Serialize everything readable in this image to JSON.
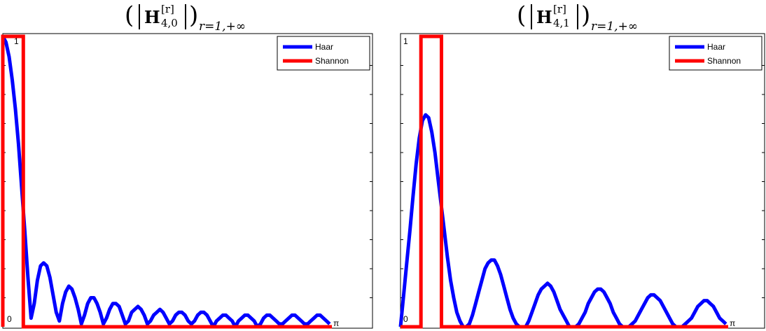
{
  "chart_data": [
    {
      "type": "line",
      "title": {
        "main": "H",
        "superscript": "[r]",
        "subscript": "4,0",
        "range": "r=1,+∞"
      },
      "y_tick_labels": {
        "top": "1",
        "bottom": "0"
      },
      "x_tick_labels": {
        "end": "π"
      },
      "xlim": [
        0,
        3.1416
      ],
      "ylim": [
        0,
        1
      ],
      "legend": {
        "placement": "top-right",
        "entries": [
          "Haar",
          "Shannon"
        ]
      },
      "series": [
        {
          "name": "Haar",
          "color": "#0000ff",
          "x": [
            0,
            0.03,
            0.06,
            0.09,
            0.12,
            0.15,
            0.18,
            0.21,
            0.24,
            0.27,
            0.3,
            0.33,
            0.36,
            0.39,
            0.42,
            0.45,
            0.48,
            0.51,
            0.54,
            0.57,
            0.6,
            0.63,
            0.66,
            0.69,
            0.72,
            0.75,
            0.78,
            0.81,
            0.84,
            0.87,
            0.9,
            0.93,
            0.96,
            0.99,
            1.02,
            1.05,
            1.08,
            1.11,
            1.14,
            1.17,
            1.2,
            1.23,
            1.26,
            1.29,
            1.32,
            1.35,
            1.38,
            1.41,
            1.44,
            1.47,
            1.5,
            1.53,
            1.56,
            1.59,
            1.62,
            1.65,
            1.68,
            1.71,
            1.74,
            1.77,
            1.8,
            1.83,
            1.86,
            1.89,
            1.92,
            1.95,
            1.98,
            2.01,
            2.04,
            2.07,
            2.1,
            2.13,
            2.16,
            2.19,
            2.22,
            2.25,
            2.28,
            2.31,
            2.34,
            2.37,
            2.4,
            2.43,
            2.46,
            2.49,
            2.52,
            2.55,
            2.58,
            2.61,
            2.64,
            2.67,
            2.7,
            2.73,
            2.76,
            2.79,
            2.82,
            2.85,
            2.88,
            2.91,
            2.94,
            2.97,
            3.0,
            3.03,
            3.06,
            3.09,
            3.12
          ],
          "y": [
            1.0,
            0.98,
            0.93,
            0.85,
            0.75,
            0.63,
            0.48,
            0.33,
            0.17,
            0.03,
            0.08,
            0.16,
            0.21,
            0.22,
            0.21,
            0.17,
            0.11,
            0.05,
            0.02,
            0.08,
            0.12,
            0.14,
            0.13,
            0.1,
            0.06,
            0.01,
            0.04,
            0.08,
            0.1,
            0.1,
            0.08,
            0.05,
            0.01,
            0.03,
            0.06,
            0.08,
            0.08,
            0.07,
            0.04,
            0.01,
            0.02,
            0.05,
            0.06,
            0.07,
            0.06,
            0.04,
            0.01,
            0.02,
            0.04,
            0.05,
            0.06,
            0.05,
            0.03,
            0.01,
            0.02,
            0.04,
            0.05,
            0.05,
            0.04,
            0.02,
            0.01,
            0.02,
            0.04,
            0.05,
            0.05,
            0.04,
            0.02,
            0.0,
            0.02,
            0.03,
            0.04,
            0.04,
            0.03,
            0.02,
            0.0,
            0.02,
            0.03,
            0.04,
            0.04,
            0.03,
            0.02,
            0.0,
            0.01,
            0.03,
            0.04,
            0.04,
            0.03,
            0.02,
            0.01,
            0.01,
            0.02,
            0.03,
            0.04,
            0.04,
            0.03,
            0.02,
            0.01,
            0.01,
            0.02,
            0.03,
            0.04,
            0.04,
            0.03,
            0.02,
            0.01
          ]
        },
        {
          "name": "Shannon",
          "color": "#ff0000",
          "x": [
            0,
            0,
            0.196,
            0.196,
            3.1416
          ],
          "y": [
            0,
            1,
            1,
            0,
            0
          ]
        }
      ]
    },
    {
      "type": "line",
      "title": {
        "main": "H",
        "superscript": "[r]",
        "subscript": "4,1",
        "range": "r=1,+∞"
      },
      "y_tick_labels": {
        "top": "1",
        "bottom": "0"
      },
      "x_tick_labels": {
        "end": "π"
      },
      "xlim": [
        0,
        3.1416
      ],
      "ylim": [
        0,
        1
      ],
      "legend": {
        "placement": "top-right",
        "entries": [
          "Haar",
          "Shannon"
        ]
      },
      "series": [
        {
          "name": "Haar",
          "color": "#0000ff",
          "x": [
            0,
            0.03,
            0.06,
            0.09,
            0.12,
            0.15,
            0.18,
            0.21,
            0.24,
            0.27,
            0.3,
            0.33,
            0.36,
            0.39,
            0.42,
            0.45,
            0.48,
            0.51,
            0.54,
            0.57,
            0.6,
            0.63,
            0.66,
            0.69,
            0.72,
            0.75,
            0.78,
            0.81,
            0.84,
            0.87,
            0.9,
            0.93,
            0.96,
            0.99,
            1.02,
            1.05,
            1.08,
            1.11,
            1.14,
            1.17,
            1.2,
            1.23,
            1.26,
            1.29,
            1.32,
            1.35,
            1.38,
            1.41,
            1.44,
            1.47,
            1.5,
            1.53,
            1.56,
            1.59,
            1.62,
            1.65,
            1.68,
            1.71,
            1.74,
            1.77,
            1.8,
            1.83,
            1.86,
            1.89,
            1.92,
            1.95,
            1.98,
            2.01,
            2.04,
            2.07,
            2.1,
            2.13,
            2.16,
            2.19,
            2.22,
            2.25,
            2.28,
            2.31,
            2.34,
            2.37,
            2.4,
            2.43,
            2.46,
            2.49,
            2.52,
            2.55,
            2.58,
            2.61,
            2.64,
            2.67,
            2.7,
            2.73,
            2.76,
            2.79,
            2.82,
            2.85,
            2.88,
            2.91,
            2.94,
            2.97,
            3.0,
            3.03,
            3.06,
            3.09,
            3.12
          ],
          "y": [
            0.0,
            0.11,
            0.22,
            0.33,
            0.45,
            0.56,
            0.65,
            0.71,
            0.73,
            0.72,
            0.67,
            0.6,
            0.51,
            0.42,
            0.33,
            0.24,
            0.16,
            0.1,
            0.05,
            0.02,
            0.0,
            0.0,
            0.01,
            0.04,
            0.08,
            0.12,
            0.16,
            0.2,
            0.22,
            0.23,
            0.23,
            0.21,
            0.18,
            0.14,
            0.1,
            0.06,
            0.03,
            0.01,
            0.0,
            0.0,
            0.0,
            0.02,
            0.05,
            0.08,
            0.11,
            0.13,
            0.14,
            0.15,
            0.14,
            0.12,
            0.09,
            0.06,
            0.04,
            0.02,
            0.0,
            0.0,
            0.0,
            0.01,
            0.03,
            0.05,
            0.08,
            0.1,
            0.12,
            0.13,
            0.13,
            0.12,
            0.1,
            0.08,
            0.05,
            0.03,
            0.01,
            0.0,
            0.0,
            0.0,
            0.01,
            0.02,
            0.04,
            0.06,
            0.08,
            0.1,
            0.11,
            0.11,
            0.1,
            0.09,
            0.07,
            0.05,
            0.03,
            0.01,
            0.0,
            0.0,
            0.0,
            0.01,
            0.02,
            0.03,
            0.05,
            0.07,
            0.08,
            0.09,
            0.09,
            0.08,
            0.07,
            0.05,
            0.03,
            0.02,
            0.01
          ]
        },
        {
          "name": "Shannon",
          "color": "#ff0000",
          "x": [
            0,
            0.196,
            0.196,
            0.393,
            0.393,
            3.1416
          ],
          "y": [
            0,
            0,
            1,
            1,
            0,
            0
          ]
        }
      ]
    }
  ]
}
